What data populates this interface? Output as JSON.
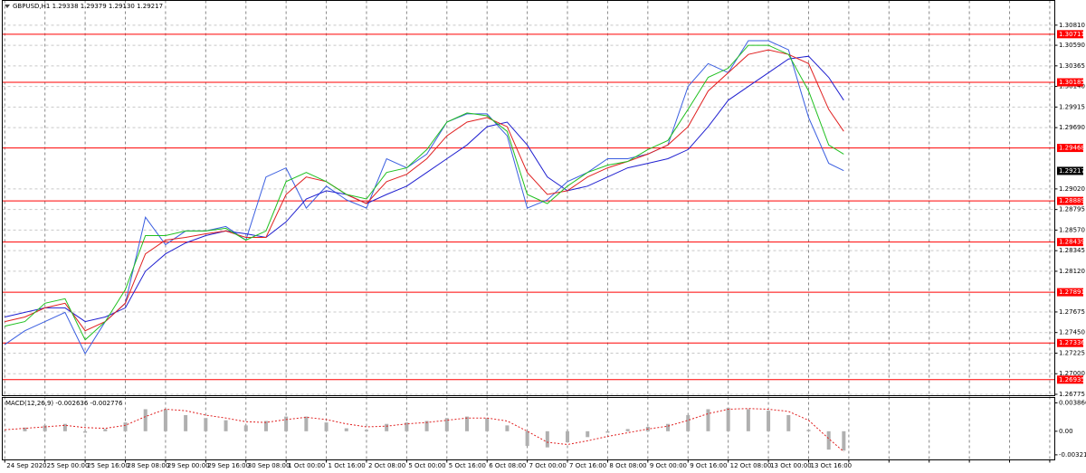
{
  "chart_data": [
    {
      "type": "line",
      "title": "GBPUSD,H1  1.29338 1.29379 1.29130 1.29217",
      "x": [
        0,
        8,
        16,
        24,
        32,
        40,
        48,
        56,
        64,
        72,
        80,
        88,
        96,
        104,
        112,
        120,
        128,
        136,
        144,
        152,
        160,
        168,
        176,
        184,
        192,
        200,
        208,
        216,
        224,
        232,
        240,
        248,
        256,
        264,
        272,
        280,
        288,
        296,
        304,
        312,
        320,
        328,
        334
      ],
      "xlim": [
        -1,
        418
      ],
      "xticks": [
        {
          "value": 0,
          "label": "24 Sep 2020"
        },
        {
          "value": 16,
          "label": "25 Sep 00:00"
        },
        {
          "value": 32,
          "label": "25 Sep 16:00"
        },
        {
          "value": 48,
          "label": "28 Sep 08:00"
        },
        {
          "value": 64,
          "label": "29 Sep 00:00"
        },
        {
          "value": 80,
          "label": "29 Sep 16:00"
        },
        {
          "value": 96,
          "label": "30 Sep 08:00"
        },
        {
          "value": 112,
          "label": "1 Oct 00:00"
        },
        {
          "value": 128,
          "label": "1 Oct 16:00"
        },
        {
          "value": 144,
          "label": "2 Oct 08:00"
        },
        {
          "value": 160,
          "label": "5 Oct 00:00"
        },
        {
          "value": 176,
          "label": "5 Oct 16:00"
        },
        {
          "value": 192,
          "label": "6 Oct 08:00"
        },
        {
          "value": 208,
          "label": "7 Oct 00:00"
        },
        {
          "value": 224,
          "label": "7 Oct 16:00"
        },
        {
          "value": 240,
          "label": "8 Oct 08:00"
        },
        {
          "value": 256,
          "label": "9 Oct 00:00"
        },
        {
          "value": 272,
          "label": "9 Oct 16:00"
        },
        {
          "value": 288,
          "label": "12 Oct 08:00"
        },
        {
          "value": 304,
          "label": "13 Oct 00:00"
        },
        {
          "value": 320,
          "label": "13 Oct 16:00"
        },
        {
          "value": 336
        },
        {
          "value": 352
        },
        {
          "value": 368
        },
        {
          "value": 384
        },
        {
          "value": 400
        },
        {
          "value": 416
        }
      ],
      "ylim": [
        1.2676,
        1.3108
      ],
      "yticks": [
        {
          "value": 1.3081,
          "label": "1.30810"
        },
        {
          "value": 1.3059,
          "label": "1.30590"
        },
        1.30365,
        {
          "value": 1.3014,
          "label": "1.30140"
        },
        1.29915,
        {
          "value": 1.2969,
          "label": "1.29690"
        },
        {
          "value": 1.2902,
          "label": "1.29020"
        },
        1.28795,
        {
          "value": 1.2857,
          "label": "1.28570"
        },
        1.28345,
        {
          "value": 1.2812,
          "label": "1.28120"
        },
        1.27675,
        {
          "value": 1.2745,
          "label": "1.27450"
        },
        1.27225,
        {
          "value": 1.27,
          "label": "1.27000"
        },
        1.26775
      ],
      "grid": true,
      "levels": [
        1.30711,
        1.30185,
        1.29468,
        1.28889,
        1.28439,
        1.27891,
        1.27336,
        1.26935
      ],
      "level_color": "#ff0000",
      "last_price": 1.29217,
      "series": [
        {
          "color": "#3a5ee0",
          "values": [
            1.2732,
            1.2747,
            1.2757,
            1.2767,
            1.2722,
            1.2757,
            1.2777,
            1.2871,
            1.2841,
            1.2856,
            1.2856,
            1.2861,
            1.2846,
            1.2915,
            1.2925,
            1.2881,
            1.2905,
            1.289,
            1.2881,
            1.2935,
            1.2925,
            1.294,
            1.2975,
            1.2984,
            1.2984,
            1.296,
            1.2881,
            1.289,
            1.291,
            1.292,
            1.2935,
            1.2935,
            1.294,
            1.295,
            1.3014,
            1.3039,
            1.3029,
            1.3064,
            1.3064,
            1.3054,
            1.298,
            1.293,
            1.2922
          ]
        },
        {
          "color": "#2020d0",
          "values": [
            1.2762,
            1.2767,
            1.2772,
            1.2772,
            1.2757,
            1.2762,
            1.2772,
            1.2812,
            1.2831,
            1.2843,
            1.2851,
            1.2856,
            1.2853,
            1.2849,
            1.2866,
            1.2891,
            1.29,
            1.2896,
            1.2886,
            1.2896,
            1.2905,
            1.292,
            1.2935,
            1.295,
            1.297,
            1.2975,
            1.295,
            1.2915,
            1.29,
            1.2905,
            1.2915,
            1.2925,
            1.293,
            1.2935,
            1.2945,
            1.297,
            1.2999,
            1.3014,
            1.3029,
            1.3044,
            1.3047,
            1.3024,
            1.2999
          ]
        },
        {
          "color": "#e02020",
          "values": [
            1.2757,
            1.2762,
            1.2772,
            1.2777,
            1.2747,
            1.2757,
            1.2777,
            1.2831,
            1.2846,
            1.2849,
            1.2853,
            1.2856,
            1.2849,
            1.2849,
            1.2896,
            1.2915,
            1.291,
            1.2896,
            1.2886,
            1.291,
            1.2918,
            1.2935,
            1.296,
            1.2975,
            1.298,
            1.297,
            1.292,
            1.2896,
            1.29,
            1.2915,
            1.2925,
            1.2932,
            1.294,
            1.295,
            1.297,
            1.3009,
            1.3029,
            1.3049,
            1.3054,
            1.3049,
            1.3039,
            1.2989,
            1.2965
          ]
        },
        {
          "color": "#20c020",
          "values": [
            1.2752,
            1.2757,
            1.2777,
            1.2782,
            1.2737,
            1.2757,
            1.2792,
            1.2851,
            1.2851,
            1.2856,
            1.2856,
            1.2859,
            1.2846,
            1.2856,
            1.291,
            1.292,
            1.291,
            1.2896,
            1.2891,
            1.292,
            1.2925,
            1.2945,
            1.2975,
            1.2985,
            1.2982,
            1.2965,
            1.2896,
            1.2886,
            1.2905,
            1.292,
            1.2928,
            1.2932,
            1.2945,
            1.2955,
            1.2989,
            1.3024,
            1.3034,
            1.3059,
            1.3059,
            1.3049,
            1.3009,
            1.295,
            1.294
          ]
        }
      ]
    },
    {
      "type": "bar",
      "title": "MACD(12,26,9) -0.002636 -0.002776",
      "x": [
        0,
        8,
        16,
        24,
        32,
        40,
        48,
        56,
        64,
        72,
        80,
        88,
        96,
        104,
        112,
        120,
        128,
        136,
        144,
        152,
        160,
        168,
        176,
        184,
        192,
        200,
        208,
        216,
        224,
        232,
        240,
        248,
        256,
        264,
        272,
        280,
        288,
        296,
        304,
        312,
        320,
        328,
        334
      ],
      "xlim": [
        -1,
        418
      ],
      "ylim": [
        -0.0039,
        0.0046
      ],
      "yticks": [
        0.003866,
        {
          "value": 0,
          "label": "0.00"
        },
        -0.00321
      ],
      "series": [
        {
          "type": "bar",
          "color": "#b0b0b0",
          "values": [
            0.0,
            0.0005,
            0.0008,
            0.001,
            -0.0002,
            0.0003,
            0.0012,
            0.003,
            0.003,
            0.0022,
            0.0018,
            0.0015,
            0.0008,
            0.0014,
            0.002,
            0.002,
            0.0012,
            0.0004,
            0.0002,
            0.001,
            0.0012,
            0.0014,
            0.0018,
            0.002,
            0.0018,
            0.0008,
            -0.002,
            -0.0022,
            -0.0015,
            -0.0008,
            -0.0002,
            0.0003,
            0.0006,
            0.001,
            0.0022,
            0.003,
            0.0032,
            0.003,
            0.0028,
            0.0022,
            0.0002,
            -0.0025,
            -0.002636
          ]
        },
        {
          "type": "line",
          "color": "#e02020",
          "values": [
            0.0002,
            0.0004,
            0.0006,
            0.0008,
            0.0005,
            0.0004,
            0.0008,
            0.002,
            0.003,
            0.0028,
            0.0022,
            0.0018,
            0.0013,
            0.0012,
            0.0016,
            0.0019,
            0.0016,
            0.001,
            0.0006,
            0.0007,
            0.001,
            0.0012,
            0.0015,
            0.0018,
            0.0018,
            0.0014,
            0.0,
            -0.0015,
            -0.0018,
            -0.0013,
            -0.0007,
            -0.0002,
            0.0003,
            0.0007,
            0.0015,
            0.0024,
            0.003,
            0.0031,
            0.003,
            0.0027,
            0.0015,
            -0.001,
            -0.002776
          ]
        }
      ]
    }
  ]
}
